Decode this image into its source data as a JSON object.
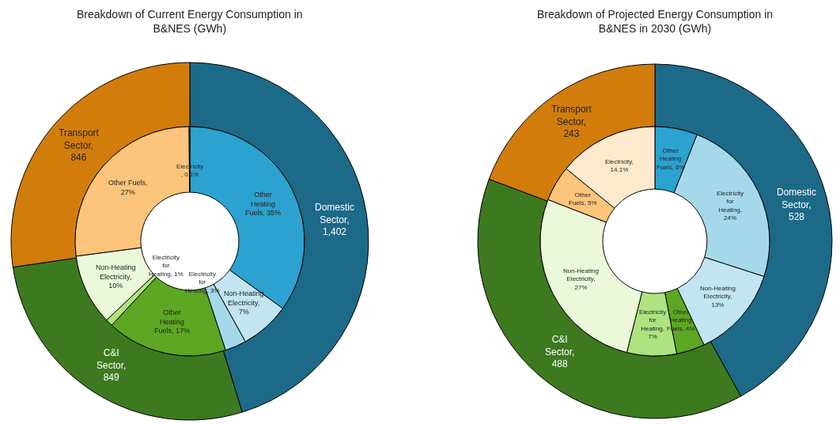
{
  "chart_data": [
    {
      "type": "donut",
      "title": "Breakdown of Current Energy Consumption in B&NES (GWh)",
      "series": [
        {
          "values": [
            1402,
            849,
            846,
            null,
            null,
            null,
            null,
            null,
            null,
            null,
            null
          ],
          "value_labels": [
            "Domestic Sector, 1,402",
            "C&I Sector, 849",
            "Transport Sector, 846",
            null,
            null,
            null,
            null,
            null,
            null,
            null,
            null
          ],
          "colors": [
            "#1c6a88",
            "#3d7a1f",
            "#d27d0b",
            null,
            null,
            null,
            null,
            null,
            null,
            null,
            null
          ]
        },
        {
          "values": [
            null,
            null,
            null,
            35,
            7,
            3,
            17,
            1,
            10,
            27,
            0.1
          ],
          "value_labels": [
            null,
            null,
            null,
            "Other Heating Fuels, 35%",
            "Non-Heating Electricity, 7%",
            "Electricity for Heating, 3%",
            "Other Heating Fuels, 17%",
            "Electricity for Heating, 1%",
            "Non-Heating Electricity, 10%",
            "Other Fuels, 27%",
            "Electricity , 0.1%"
          ],
          "colors": [
            null,
            null,
            null,
            "#2ba2cf",
            "#c3e4f1",
            "#a6d8eb",
            "#5da722",
            "#aee37f",
            "#ebf8da",
            "#fcc57b",
            "#fde9cd"
          ]
        }
      ]
    },
    {
      "type": "donut",
      "title": "Breakdown of Projected Energy Consumption in B&NES in 2030 (GWh)",
      "series": [
        {
          "values": [
            528,
            488,
            243,
            null,
            null,
            null,
            null,
            null,
            null,
            null,
            null
          ],
          "value_labels": [
            "Domestic Sector, 528",
            "C&I Sector, 488",
            "Transport Sector, 243",
            null,
            null,
            null,
            null,
            null,
            null,
            null,
            null
          ],
          "colors": [
            "#1c6a88",
            "#3d7a1f",
            "#d27d0b",
            null,
            null,
            null,
            null,
            null,
            null,
            null,
            null
          ]
        },
        {
          "values": [
            null,
            null,
            null,
            6,
            24,
            13,
            4,
            7,
            27,
            5,
            14.1
          ],
          "value_labels": [
            null,
            null,
            null,
            "Other Heating Fuels, 6%",
            "Electricity for Heating, 24%",
            "Non-Heating Electricity, 13%",
            "Other Heating Fuels, 4%",
            "Electricity for Heating, 7%",
            "Non-Heating Electricity, 27%",
            "Other Fuels, 5%",
            "Electricity, 14.1%"
          ],
          "colors": [
            null,
            null,
            null,
            "#2ba2cf",
            "#a6d8eb",
            "#c3e4f1",
            "#5da722",
            "#aee37f",
            "#ebf8da",
            "#fcc57b",
            "#fde9cd"
          ]
        }
      ]
    }
  ]
}
